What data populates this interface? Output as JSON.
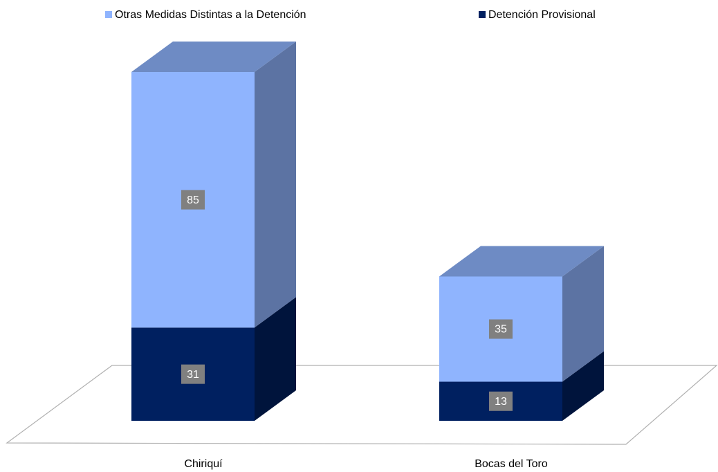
{
  "chart_data": {
    "type": "bar3d_stacked",
    "categories": [
      "Chiriquí",
      "Bocas del Toro"
    ],
    "series": [
      {
        "name": "Detención Provisional",
        "color": "#002060",
        "values": [
          31,
          13
        ]
      },
      {
        "name": "Otras Medidas Distintas a la Detención",
        "color": "#8fb4fe",
        "values": [
          85,
          35
        ]
      }
    ]
  }
}
